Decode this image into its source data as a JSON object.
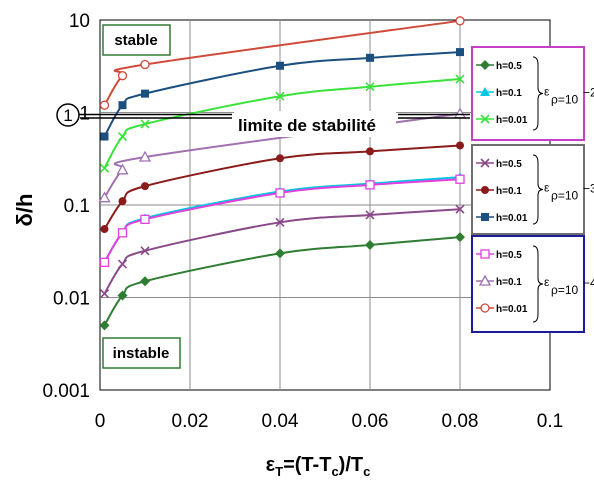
{
  "chart_data": {
    "type": "line",
    "x_log": false,
    "y_log": true,
    "xlim": [
      0,
      0.1
    ],
    "ylim": [
      0.001,
      10
    ],
    "x_ticks": [
      "0",
      "0.02",
      "0.04",
      "0.06",
      "0.08",
      "0.1"
    ],
    "y_ticks": [
      "10",
      "1",
      "0.1",
      "0.01",
      "0.001"
    ],
    "xlabel": "ε_T=(T-T_c)/T_c",
    "ylabel": "δ/h",
    "grid": true,
    "annotations": {
      "stable": "stable",
      "instable": "instable",
      "limit_marker": "1",
      "limit_label": "limite de stabilité"
    },
    "legend_groups": [
      {
        "rho_label": "ρ=10",
        "rho_exp": "−2",
        "eps": "ε",
        "color": "#c63fc6"
      },
      {
        "rho_label": "ρ=10",
        "rho_exp": "−3",
        "eps": "ε",
        "color": "#6f6f6f"
      },
      {
        "rho_label": "ρ=10",
        "rho_exp": "−4",
        "eps": "ε",
        "color": "#1c1c9a"
      }
    ],
    "series": [
      {
        "name": "h=0.5",
        "group": 0,
        "color": "#2e7d32",
        "marker": "diamond",
        "x": [
          0.001,
          0.005,
          0.01,
          0.04,
          0.06,
          0.08
        ],
        "values": [
          0.005,
          0.0105,
          0.015,
          0.03,
          0.037,
          0.045
        ]
      },
      {
        "name": "h=0.1",
        "group": 0,
        "color": "#00c8e0",
        "marker": "triangle",
        "x": [
          0.001,
          0.005,
          0.01,
          0.04,
          0.06,
          0.08
        ],
        "values": [
          0.024,
          0.05,
          0.072,
          0.14,
          0.17,
          0.2
        ]
      },
      {
        "name": "h=0.01",
        "group": 0,
        "color": "#39e33a",
        "marker": "x",
        "x": [
          0.001,
          0.005,
          0.01,
          0.04,
          0.06,
          0.08
        ],
        "values": [
          0.25,
          0.55,
          0.75,
          1.5,
          1.9,
          2.3
        ]
      },
      {
        "name": "h=0.5",
        "group": 1,
        "color": "#8a4a8a",
        "marker": "x",
        "x": [
          0.001,
          0.005,
          0.01,
          0.04,
          0.06,
          0.08
        ],
        "values": [
          0.011,
          0.023,
          0.032,
          0.065,
          0.078,
          0.09
        ]
      },
      {
        "name": "h=0.1",
        "group": 1,
        "color": "#8b1a1a",
        "marker": "circle",
        "x": [
          0.001,
          0.005,
          0.01,
          0.04,
          0.06,
          0.08
        ],
        "values": [
          0.055,
          0.11,
          0.16,
          0.32,
          0.38,
          0.44
        ]
      },
      {
        "name": "h=0.01",
        "group": 1,
        "color": "#1a4f80",
        "marker": "square",
        "x": [
          0.001,
          0.005,
          0.01,
          0.04,
          0.06,
          0.08
        ],
        "values": [
          0.55,
          1.2,
          1.6,
          3.2,
          3.9,
          4.5
        ]
      },
      {
        "name": "h=0.5",
        "group": 2,
        "color": "#e040e0",
        "marker": "square-open",
        "x": [
          0.001,
          0.005,
          0.01,
          0.04,
          0.06,
          0.08
        ],
        "values": [
          0.024,
          0.05,
          0.07,
          0.135,
          0.165,
          0.19
        ]
      },
      {
        "name": "h=0.1",
        "group": 2,
        "color": "#a070b0",
        "marker": "triangle-open",
        "x": [
          0.001,
          0.005,
          0.01,
          0.08
        ],
        "values": [
          0.12,
          0.24,
          0.33,
          0.97
        ]
      },
      {
        "name": "h=0.01",
        "group": 2,
        "color": "#d04a3a",
        "marker": "circle-open",
        "x": [
          0.001,
          0.005,
          0.01,
          0.08
        ],
        "values": [
          1.2,
          2.5,
          3.3,
          9.8
        ]
      }
    ]
  }
}
